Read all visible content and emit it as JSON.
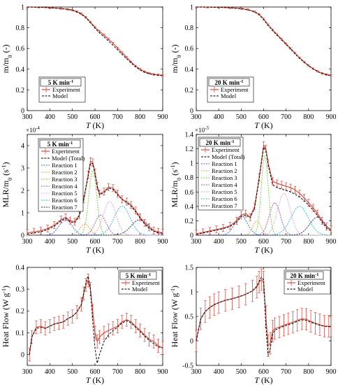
{
  "colors": {
    "experiment": "#e04a3f",
    "model": "#000000",
    "reactions": [
      "#2b6fd6",
      "#e8a33b",
      "#7ccf4a",
      "#9b59b6",
      "#f0a0d0",
      "#35b5e5",
      "#222a6a"
    ]
  },
  "chart_data": [
    {
      "id": "mass-5",
      "type": "line",
      "heating_rate": "5 K min",
      "xlabel": "T (K)",
      "ylabel": "m/m0 (-)",
      "xlim": [
        300,
        900
      ],
      "ylim": [
        0,
        1
      ],
      "xticks": [
        300,
        400,
        500,
        600,
        700,
        800,
        900
      ],
      "yticks": [
        0,
        0.2,
        0.4,
        0.6,
        0.8,
        1
      ],
      "legend": [
        "Experiment",
        "Model"
      ],
      "series": [
        {
          "name": "Experiment",
          "x": [
            300,
            350,
            400,
            450,
            480,
            500,
            520,
            540,
            560,
            580,
            600,
            620,
            640,
            660,
            680,
            700,
            720,
            740,
            760,
            780,
            800,
            820,
            840,
            860,
            880,
            900
          ],
          "values": [
            1.0,
            0.998,
            0.993,
            0.985,
            0.978,
            0.97,
            0.955,
            0.935,
            0.9,
            0.855,
            0.805,
            0.765,
            0.73,
            0.69,
            0.65,
            0.605,
            0.56,
            0.515,
            0.47,
            0.43,
            0.4,
            0.375,
            0.36,
            0.35,
            0.345,
            0.34
          ]
        },
        {
          "name": "Model",
          "x": [
            300,
            350,
            400,
            450,
            480,
            500,
            520,
            540,
            560,
            580,
            600,
            620,
            640,
            660,
            680,
            700,
            720,
            740,
            760,
            780,
            800,
            820,
            840,
            860,
            880,
            900
          ],
          "values": [
            1.0,
            0.998,
            0.993,
            0.985,
            0.977,
            0.968,
            0.952,
            0.93,
            0.895,
            0.848,
            0.795,
            0.75,
            0.712,
            0.672,
            0.63,
            0.587,
            0.543,
            0.5,
            0.46,
            0.422,
            0.392,
            0.37,
            0.355,
            0.347,
            0.342,
            0.338
          ]
        }
      ]
    },
    {
      "id": "mass-20",
      "type": "line",
      "heating_rate": "20 K min",
      "xlabel": "T (K)",
      "ylabel": "m/m0 (-)",
      "xlim": [
        300,
        900
      ],
      "ylim": [
        0,
        1
      ],
      "xticks": [
        300,
        400,
        500,
        600,
        700,
        800,
        900
      ],
      "yticks": [
        0,
        0.2,
        0.4,
        0.6,
        0.8,
        1
      ],
      "legend": [
        "Experiment",
        "Model"
      ],
      "series": [
        {
          "name": "Experiment",
          "x": [
            300,
            350,
            400,
            450,
            500,
            530,
            560,
            580,
            600,
            620,
            640,
            660,
            680,
            700,
            720,
            740,
            760,
            780,
            800,
            820,
            840,
            860,
            880,
            900
          ],
          "values": [
            1.0,
            0.999,
            0.997,
            0.993,
            0.985,
            0.975,
            0.955,
            0.93,
            0.885,
            0.83,
            0.78,
            0.735,
            0.69,
            0.645,
            0.6,
            0.555,
            0.51,
            0.47,
            0.435,
            0.405,
            0.38,
            0.36,
            0.348,
            0.34
          ]
        },
        {
          "name": "Model",
          "x": [
            300,
            350,
            400,
            450,
            500,
            530,
            560,
            580,
            600,
            620,
            640,
            660,
            680,
            700,
            720,
            740,
            760,
            780,
            800,
            820,
            840,
            860,
            880,
            900
          ],
          "values": [
            1.0,
            0.999,
            0.997,
            0.992,
            0.984,
            0.973,
            0.952,
            0.925,
            0.878,
            0.822,
            0.772,
            0.727,
            0.683,
            0.638,
            0.593,
            0.548,
            0.505,
            0.466,
            0.432,
            0.403,
            0.378,
            0.358,
            0.345,
            0.338
          ]
        }
      ]
    },
    {
      "id": "mlr-5",
      "type": "line",
      "heating_rate": "5 K min",
      "xlabel": "T (K)",
      "ylabel": "MLR/m0 (s-1)",
      "exponent": "×10",
      "exponent_power": "-4",
      "xlim": [
        300,
        900
      ],
      "ylim": [
        0,
        4.5
      ],
      "xticks": [
        300,
        400,
        500,
        600,
        700,
        800,
        900
      ],
      "yticks": [
        0,
        1,
        2,
        3,
        4
      ],
      "legend": [
        "Experiment",
        "Model (Total)",
        "Reaction 1",
        "Reaction 2",
        "Reaction 3",
        "Reaction 4",
        "Reaction 5",
        "Reaction 6",
        "Reaction 7"
      ],
      "experiment": {
        "x": [
          300,
          330,
          360,
          390,
          420,
          450,
          470,
          490,
          510,
          530,
          550,
          570,
          580,
          590,
          600,
          610,
          620,
          640,
          660,
          680,
          700,
          720,
          740,
          760,
          780,
          800,
          820,
          840,
          860,
          880,
          900
        ],
        "values": [
          0.1,
          0.15,
          0.2,
          0.3,
          0.45,
          0.7,
          0.8,
          0.65,
          0.6,
          0.9,
          1.6,
          2.7,
          3.3,
          3.25,
          2.8,
          2.2,
          1.85,
          1.95,
          2.15,
          2.1,
          1.85,
          1.6,
          1.5,
          1.35,
          1.1,
          0.8,
          0.55,
          0.35,
          0.2,
          0.15,
          0.1
        ]
      },
      "model_total": {
        "x": [
          300,
          330,
          360,
          390,
          420,
          450,
          470,
          490,
          510,
          530,
          550,
          570,
          580,
          590,
          600,
          610,
          620,
          640,
          660,
          680,
          700,
          720,
          740,
          760,
          780,
          800,
          820,
          840,
          860,
          880,
          900
        ],
        "values": [
          0.05,
          0.1,
          0.15,
          0.25,
          0.4,
          0.65,
          0.75,
          0.6,
          0.55,
          0.85,
          1.55,
          2.65,
          3.2,
          3.2,
          2.75,
          2.15,
          1.8,
          1.9,
          2.1,
          2.05,
          1.8,
          1.6,
          1.45,
          1.3,
          1.05,
          0.75,
          0.5,
          0.3,
          0.18,
          0.12,
          0.08
        ]
      },
      "reactions": [
        {
          "name": "Reaction 1",
          "peak_x": 470,
          "peak_y": 0.7,
          "width": 40
        },
        {
          "name": "Reaction 2",
          "peak_x": 555,
          "peak_y": 0.5,
          "width": 30
        },
        {
          "name": "Reaction 3",
          "peak_x": 590,
          "peak_y": 2.9,
          "width": 25
        },
        {
          "name": "Reaction 4",
          "peak_x": 625,
          "peak_y": 0.9,
          "width": 35
        },
        {
          "name": "Reaction 5",
          "peak_x": 665,
          "peak_y": 1.5,
          "width": 40
        },
        {
          "name": "Reaction 6",
          "peak_x": 720,
          "peak_y": 1.3,
          "width": 50
        },
        {
          "name": "Reaction 7",
          "peak_x": 800,
          "peak_y": 0.7,
          "width": 55
        }
      ]
    },
    {
      "id": "mlr-20",
      "type": "line",
      "heating_rate": "20 K min",
      "xlabel": "T (K)",
      "ylabel": "MLR/m0 (s-1)",
      "exponent": "×10",
      "exponent_power": "-3",
      "xlim": [
        300,
        900
      ],
      "ylim": [
        0,
        1.4
      ],
      "xticks": [
        300,
        400,
        500,
        600,
        700,
        800,
        900
      ],
      "yticks": [
        0,
        0.2,
        0.4,
        0.6,
        0.8,
        1,
        1.2,
        1.4
      ],
      "legend": [
        "Experiment",
        "Model (Total)",
        "Reaction 1",
        "Reaction 2",
        "Reaction 3",
        "Reaction 4",
        "Reaction 5",
        "Reaction 6",
        "Reaction 7"
      ],
      "experiment": {
        "x": [
          300,
          330,
          360,
          390,
          420,
          450,
          480,
          500,
          520,
          540,
          560,
          580,
          600,
          610,
          620,
          640,
          660,
          680,
          700,
          720,
          740,
          760,
          780,
          800,
          820,
          840,
          860,
          880,
          900
        ],
        "values": [
          0.02,
          0.04,
          0.06,
          0.08,
          0.1,
          0.13,
          0.2,
          0.28,
          0.3,
          0.25,
          0.4,
          0.8,
          1.25,
          1.2,
          1.0,
          0.75,
          0.72,
          0.7,
          0.68,
          0.66,
          0.63,
          0.58,
          0.52,
          0.45,
          0.38,
          0.3,
          0.2,
          0.12,
          0.08
        ]
      },
      "model_total": {
        "x": [
          300,
          330,
          360,
          390,
          420,
          450,
          480,
          500,
          520,
          540,
          560,
          580,
          600,
          610,
          620,
          640,
          660,
          680,
          700,
          720,
          740,
          760,
          780,
          800,
          820,
          840,
          860,
          880,
          900
        ],
        "values": [
          0.01,
          0.03,
          0.05,
          0.07,
          0.09,
          0.12,
          0.18,
          0.26,
          0.28,
          0.24,
          0.38,
          0.78,
          1.22,
          1.18,
          0.98,
          0.7,
          0.66,
          0.64,
          0.62,
          0.6,
          0.57,
          0.53,
          0.48,
          0.42,
          0.35,
          0.27,
          0.18,
          0.1,
          0.06
        ]
      },
      "reactions": [
        {
          "name": "Reaction 1",
          "peak_x": 500,
          "peak_y": 0.27,
          "width": 40
        },
        {
          "name": "Reaction 2",
          "peak_x": 570,
          "peak_y": 0.2,
          "width": 25
        },
        {
          "name": "Reaction 3",
          "peak_x": 605,
          "peak_y": 1.1,
          "width": 22
        },
        {
          "name": "Reaction 4",
          "peak_x": 650,
          "peak_y": 0.45,
          "width": 35
        },
        {
          "name": "Reaction 5",
          "peak_x": 690,
          "peak_y": 0.58,
          "width": 40
        },
        {
          "name": "Reaction 6",
          "peak_x": 760,
          "peak_y": 0.4,
          "width": 55
        },
        {
          "name": "Reaction 7",
          "peak_x": 840,
          "peak_y": 0.25,
          "width": 50
        }
      ]
    },
    {
      "id": "heat-5",
      "type": "line",
      "heating_rate": "5 K min",
      "xlabel": "T (K)",
      "ylabel": "Heat Flow (W g-1)",
      "xlim": [
        300,
        900
      ],
      "ylim": [
        -0.05,
        0.4
      ],
      "xticks": [
        300,
        400,
        500,
        600,
        700,
        800,
        900
      ],
      "yticks": [
        0,
        0.1,
        0.2,
        0.3,
        0.4
      ],
      "legend": [
        "Experiment",
        "Model"
      ],
      "series": [
        {
          "name": "Experiment",
          "x": [
            310,
            320,
            340,
            360,
            380,
            400,
            420,
            440,
            460,
            480,
            500,
            520,
            540,
            550,
            560,
            570,
            580,
            590,
            600,
            610,
            620,
            640,
            660,
            680,
            700,
            720,
            740,
            760,
            780,
            800,
            820,
            840,
            860,
            880,
            900
          ],
          "values": [
            0.0,
            0.08,
            0.125,
            0.13,
            0.12,
            0.13,
            0.14,
            0.145,
            0.15,
            0.165,
            0.175,
            0.195,
            0.23,
            0.28,
            0.32,
            0.34,
            0.3,
            0.2,
            0.1,
            0.06,
            0.08,
            0.1,
            0.11,
            0.12,
            0.13,
            0.15,
            0.16,
            0.15,
            0.13,
            0.11,
            0.09,
            0.07,
            0.06,
            0.04,
            0.03
          ]
        },
        {
          "name": "Model",
          "x": [
            310,
            320,
            340,
            360,
            380,
            400,
            420,
            440,
            460,
            480,
            500,
            520,
            540,
            550,
            560,
            570,
            580,
            590,
            600,
            610,
            620,
            640,
            660,
            680,
            700,
            720,
            740,
            760,
            780,
            800,
            820,
            840,
            860,
            880,
            900
          ],
          "values": [
            0.0,
            0.08,
            0.12,
            0.125,
            0.12,
            0.13,
            0.14,
            0.145,
            0.15,
            0.165,
            0.175,
            0.195,
            0.23,
            0.28,
            0.33,
            0.36,
            0.3,
            0.15,
            0.03,
            -0.04,
            0.0,
            0.06,
            0.09,
            0.11,
            0.125,
            0.145,
            0.155,
            0.145,
            0.125,
            0.105,
            0.085,
            0.065,
            0.05,
            0.035,
            0.03
          ]
        }
      ],
      "error_bar_half_width": 0.03
    },
    {
      "id": "heat-20",
      "type": "line",
      "heating_rate": "20 K min",
      "xlabel": "T (K)",
      "ylabel": "Heat Flow (W g-1)",
      "xlim": [
        300,
        900
      ],
      "ylim": [
        -0.5,
        1.5
      ],
      "xticks": [
        300,
        400,
        500,
        600,
        700,
        800,
        900
      ],
      "yticks": [
        -0.5,
        0,
        0.5,
        1,
        1.5
      ],
      "legend": [
        "Experiment",
        "Model"
      ],
      "series": [
        {
          "name": "Experiment",
          "x": [
            300,
            320,
            340,
            360,
            380,
            400,
            430,
            460,
            490,
            520,
            550,
            570,
            580,
            590,
            600,
            610,
            620,
            630,
            640,
            650,
            670,
            690,
            710,
            730,
            750,
            770,
            790,
            810,
            830,
            850,
            870,
            890,
            900
          ],
          "values": [
            0.0,
            0.45,
            0.6,
            0.68,
            0.74,
            0.78,
            0.83,
            0.86,
            0.9,
            0.95,
            1.02,
            1.1,
            1.2,
            1.25,
            1.2,
            0.5,
            -0.1,
            -0.05,
            0.2,
            0.25,
            0.28,
            0.32,
            0.35,
            0.38,
            0.42,
            0.45,
            0.44,
            0.4,
            0.36,
            0.33,
            0.3,
            0.3,
            0.3
          ]
        },
        {
          "name": "Model",
          "x": [
            300,
            320,
            340,
            360,
            380,
            400,
            430,
            460,
            490,
            520,
            550,
            570,
            580,
            590,
            600,
            610,
            620,
            630,
            640,
            650,
            670,
            690,
            710,
            730,
            750,
            770,
            790,
            810,
            830,
            850,
            870,
            890,
            900
          ],
          "values": [
            0.0,
            0.45,
            0.6,
            0.68,
            0.74,
            0.78,
            0.83,
            0.86,
            0.9,
            0.95,
            1.02,
            1.12,
            1.22,
            1.3,
            1.25,
            0.3,
            -0.3,
            -0.15,
            0.15,
            0.22,
            0.26,
            0.3,
            0.33,
            0.36,
            0.4,
            0.43,
            0.42,
            0.38,
            0.35,
            0.32,
            0.3,
            0.29,
            0.29
          ]
        }
      ],
      "error_bar_half_width": 0.22
    }
  ]
}
